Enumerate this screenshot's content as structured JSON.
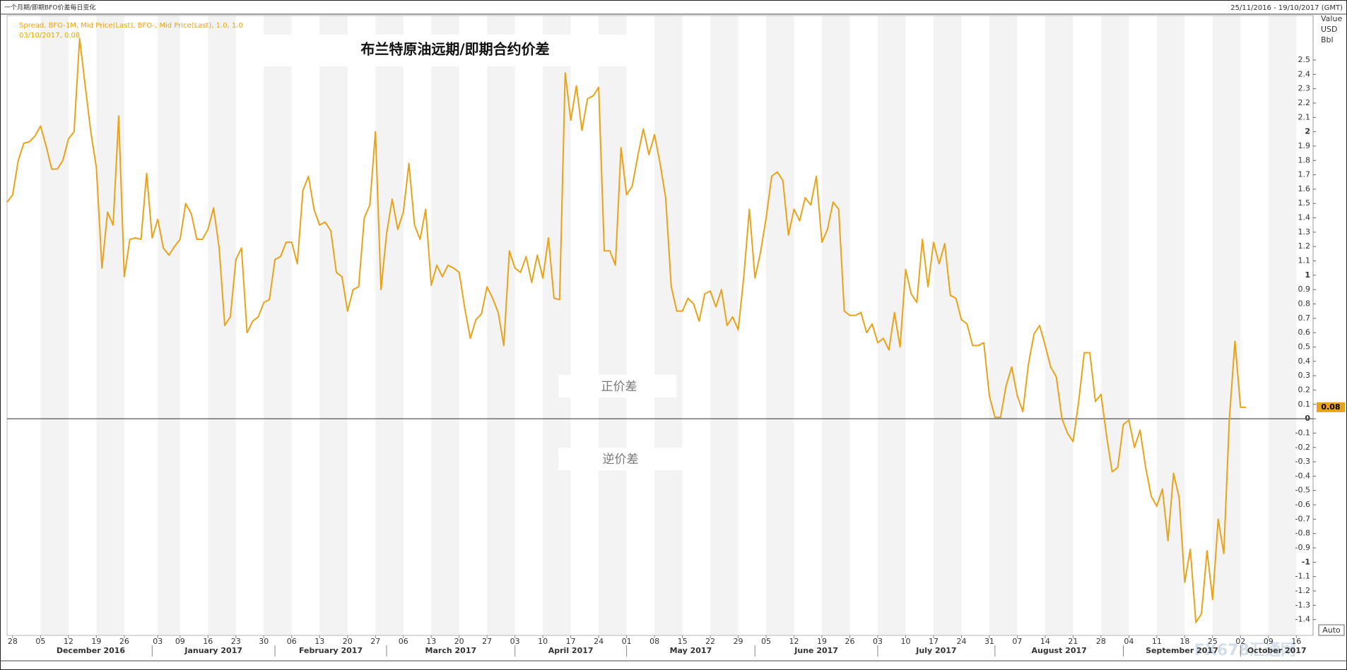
{
  "chart_data": {
    "type": "line",
    "title": "布兰特原油远期/即期合约价差",
    "caption": "一个月期/即期BFO价差每日变化",
    "date_range": "25/11/2016 - 19/10/2017 (GMT)",
    "cursor_label": "03/10/2017, 0.08",
    "annotations": [
      "正价差",
      "逆价差"
    ],
    "y_axis_label": [
      "Value",
      "USD",
      "Bbl"
    ],
    "button": "Auto",
    "watermark": "FX678汇通网",
    "xlim": [
      "2016-11-25",
      "2017-10-19"
    ],
    "ylim": [
      -1.51,
      2.81
    ],
    "reference_line": 0,
    "xticks": [
      {
        "value": "2016-11-28",
        "label": "28"
      },
      {
        "value": "2016-12-05",
        "label": "05"
      },
      {
        "value": "2016-12-12",
        "label": "12"
      },
      {
        "value": "2016-12-19",
        "label": "19"
      },
      {
        "value": "2016-12-26",
        "label": "26"
      },
      {
        "value": "2017-01-03",
        "label": "03"
      },
      {
        "value": "2017-01-09",
        "label": "09"
      },
      {
        "value": "2017-01-16",
        "label": "16"
      },
      {
        "value": "2017-01-23",
        "label": "23"
      },
      {
        "value": "2017-01-30",
        "label": "30"
      },
      {
        "value": "2017-02-06",
        "label": "06"
      },
      {
        "value": "2017-02-13",
        "label": "13"
      },
      {
        "value": "2017-02-20",
        "label": "20"
      },
      {
        "value": "2017-02-27",
        "label": "27"
      },
      {
        "value": "2017-03-06",
        "label": "06"
      },
      {
        "value": "2017-03-13",
        "label": "13"
      },
      {
        "value": "2017-03-20",
        "label": "20"
      },
      {
        "value": "2017-03-27",
        "label": "27"
      },
      {
        "value": "2017-04-03",
        "label": "03"
      },
      {
        "value": "2017-04-10",
        "label": "10"
      },
      {
        "value": "2017-04-17",
        "label": "17"
      },
      {
        "value": "2017-04-24",
        "label": "24"
      },
      {
        "value": "2017-05-01",
        "label": "01"
      },
      {
        "value": "2017-05-08",
        "label": "08"
      },
      {
        "value": "2017-05-15",
        "label": "15"
      },
      {
        "value": "2017-05-22",
        "label": "22"
      },
      {
        "value": "2017-05-29",
        "label": "29"
      },
      {
        "value": "2017-06-05",
        "label": "05"
      },
      {
        "value": "2017-06-12",
        "label": "12"
      },
      {
        "value": "2017-06-19",
        "label": "19"
      },
      {
        "value": "2017-06-26",
        "label": "26"
      },
      {
        "value": "2017-07-03",
        "label": "03"
      },
      {
        "value": "2017-07-10",
        "label": "10"
      },
      {
        "value": "2017-07-17",
        "label": "17"
      },
      {
        "value": "2017-07-24",
        "label": "24"
      },
      {
        "value": "2017-07-31",
        "label": "31"
      },
      {
        "value": "2017-08-07",
        "label": "07"
      },
      {
        "value": "2017-08-14",
        "label": "14"
      },
      {
        "value": "2017-08-21",
        "label": "21"
      },
      {
        "value": "2017-08-28",
        "label": "28"
      },
      {
        "value": "2017-09-04",
        "label": "04"
      },
      {
        "value": "2017-09-11",
        "label": "11"
      },
      {
        "value": "2017-09-18",
        "label": "18"
      },
      {
        "value": "2017-09-25",
        "label": "25"
      },
      {
        "value": "2017-10-02",
        "label": "02"
      },
      {
        "value": "2017-10-09",
        "label": "09"
      },
      {
        "value": "2017-10-16",
        "label": "16"
      }
    ],
    "months": [
      {
        "value": "2016-12",
        "label": "December 2016"
      },
      {
        "value": "2017-01",
        "label": "January 2017"
      },
      {
        "value": "2017-02",
        "label": "February 2017"
      },
      {
        "value": "2017-03",
        "label": "March 2017"
      },
      {
        "value": "2017-04",
        "label": "April 2017"
      },
      {
        "value": "2017-05",
        "label": "May 2017"
      },
      {
        "value": "2017-06",
        "label": "June 2017"
      },
      {
        "value": "2017-07",
        "label": "July 2017"
      },
      {
        "value": "2017-08",
        "label": "August 2017"
      },
      {
        "value": "2017-09",
        "label": "September 2017"
      },
      {
        "value": "2017-10",
        "label": "October 2017"
      }
    ],
    "yticks": [
      2.5,
      2.4,
      2.3,
      2.2,
      2.1,
      2,
      1.9,
      1.8,
      1.7,
      1.6,
      1.5,
      1.4,
      1.3,
      1.2,
      1.1,
      1,
      0.9,
      0.8,
      0.7,
      0.6,
      0.5,
      0.4,
      0.3,
      0.2,
      0.1,
      0,
      -0.1,
      -0.2,
      -0.3,
      -0.4,
      -0.5,
      -0.6,
      -0.7,
      -0.8,
      -0.9,
      -1,
      -1.1,
      -1.2,
      -1.3,
      -1.4
    ],
    "x": [
      "2016-11-25",
      "2016-11-28",
      "2016-11-29",
      "2016-11-30",
      "2016-12-01",
      "2016-12-02",
      "2016-12-05",
      "2016-12-06",
      "2016-12-07",
      "2016-12-08",
      "2016-12-09",
      "2016-12-12",
      "2016-12-13",
      "2016-12-14",
      "2016-12-15",
      "2016-12-16",
      "2016-12-19",
      "2016-12-20",
      "2016-12-21",
      "2016-12-22",
      "2016-12-23",
      "2016-12-26",
      "2016-12-27",
      "2016-12-28",
      "2016-12-29",
      "2016-12-30",
      "2017-01-02",
      "2017-01-03",
      "2017-01-04",
      "2017-01-05",
      "2017-01-06",
      "2017-01-09",
      "2017-01-10",
      "2017-01-11",
      "2017-01-12",
      "2017-01-13",
      "2017-01-16",
      "2017-01-17",
      "2017-01-18",
      "2017-01-19",
      "2017-01-20",
      "2017-01-23",
      "2017-01-24",
      "2017-01-25",
      "2017-01-26",
      "2017-01-27",
      "2017-01-30",
      "2017-01-31",
      "2017-02-01",
      "2017-02-02",
      "2017-02-03",
      "2017-02-06",
      "2017-02-07",
      "2017-02-08",
      "2017-02-09",
      "2017-02-10",
      "2017-02-13",
      "2017-02-14",
      "2017-02-15",
      "2017-02-16",
      "2017-02-17",
      "2017-02-20",
      "2017-02-21",
      "2017-02-22",
      "2017-02-23",
      "2017-02-24",
      "2017-02-27",
      "2017-02-28",
      "2017-03-01",
      "2017-03-02",
      "2017-03-03",
      "2017-03-06",
      "2017-03-07",
      "2017-03-08",
      "2017-03-09",
      "2017-03-10",
      "2017-03-13",
      "2017-03-14",
      "2017-03-15",
      "2017-03-16",
      "2017-03-17",
      "2017-03-20",
      "2017-03-21",
      "2017-03-22",
      "2017-03-23",
      "2017-03-24",
      "2017-03-27",
      "2017-03-28",
      "2017-03-29",
      "2017-03-30",
      "2017-03-31",
      "2017-04-03",
      "2017-04-04",
      "2017-04-05",
      "2017-04-06",
      "2017-04-07",
      "2017-04-10",
      "2017-04-11",
      "2017-04-12",
      "2017-04-13",
      "2017-04-14",
      "2017-04-17",
      "2017-04-18",
      "2017-04-19",
      "2017-04-20",
      "2017-04-21",
      "2017-04-24",
      "2017-04-25",
      "2017-04-26",
      "2017-04-27",
      "2017-04-28",
      "2017-05-01",
      "2017-05-02",
      "2017-05-03",
      "2017-05-04",
      "2017-05-05",
      "2017-05-08",
      "2017-05-09",
      "2017-05-10",
      "2017-05-11",
      "2017-05-12",
      "2017-05-15",
      "2017-05-16",
      "2017-05-17",
      "2017-05-18",
      "2017-05-19",
      "2017-05-22",
      "2017-05-23",
      "2017-05-24",
      "2017-05-25",
      "2017-05-26",
      "2017-05-29",
      "2017-05-30",
      "2017-05-31",
      "2017-06-01",
      "2017-06-02",
      "2017-06-05",
      "2017-06-06",
      "2017-06-07",
      "2017-06-08",
      "2017-06-09",
      "2017-06-12",
      "2017-06-13",
      "2017-06-14",
      "2017-06-15",
      "2017-06-16",
      "2017-06-19",
      "2017-06-20",
      "2017-06-21",
      "2017-06-22",
      "2017-06-23",
      "2017-06-26",
      "2017-06-27",
      "2017-06-28",
      "2017-06-29",
      "2017-06-30",
      "2017-07-03",
      "2017-07-04",
      "2017-07-05",
      "2017-07-06",
      "2017-07-07",
      "2017-07-10",
      "2017-07-11",
      "2017-07-12",
      "2017-07-13",
      "2017-07-14",
      "2017-07-17",
      "2017-07-18",
      "2017-07-19",
      "2017-07-20",
      "2017-07-21",
      "2017-07-24",
      "2017-07-25",
      "2017-07-26",
      "2017-07-27",
      "2017-07-28",
      "2017-07-31",
      "2017-08-01",
      "2017-08-02",
      "2017-08-03",
      "2017-08-04",
      "2017-08-07",
      "2017-08-08",
      "2017-08-09",
      "2017-08-10",
      "2017-08-11",
      "2017-08-14",
      "2017-08-15",
      "2017-08-16",
      "2017-08-17",
      "2017-08-18",
      "2017-08-21",
      "2017-08-22",
      "2017-08-23",
      "2017-08-24",
      "2017-08-25",
      "2017-08-28",
      "2017-08-29",
      "2017-08-30",
      "2017-08-31",
      "2017-09-01",
      "2017-09-04",
      "2017-09-05",
      "2017-09-06",
      "2017-09-07",
      "2017-09-08",
      "2017-09-11",
      "2017-09-12",
      "2017-09-13",
      "2017-09-14",
      "2017-09-15",
      "2017-09-18",
      "2017-09-19",
      "2017-09-20",
      "2017-09-21",
      "2017-09-22",
      "2017-09-25",
      "2017-09-26",
      "2017-09-27",
      "2017-09-28",
      "2017-09-29",
      "2017-10-02",
      "2017-10-03"
    ],
    "series": [
      {
        "name": "Spread, BFO-1M, Mid Price(Last), BFO-, Mid Price(Last),  1.0, 1.0",
        "color": "#e8a31a",
        "values": [
          1.51,
          1.56,
          1.8,
          1.92,
          1.93,
          1.97,
          2.04,
          1.9,
          1.74,
          1.74,
          1.8,
          1.95,
          2.0,
          2.65,
          2.32,
          2.0,
          1.75,
          1.05,
          1.44,
          1.35,
          2.11,
          0.99,
          1.25,
          1.26,
          1.25,
          1.71,
          1.26,
          1.39,
          1.19,
          1.14,
          1.2,
          1.25,
          1.5,
          1.43,
          1.25,
          1.25,
          1.32,
          1.47,
          1.19,
          0.65,
          0.71,
          1.11,
          1.19,
          0.6,
          0.68,
          0.71,
          0.81,
          0.83,
          1.11,
          1.13,
          1.23,
          1.23,
          1.08,
          1.59,
          1.69,
          1.46,
          1.35,
          1.37,
          1.31,
          1.02,
          0.99,
          0.75,
          0.9,
          0.92,
          1.4,
          1.49,
          2.0,
          0.9,
          1.29,
          1.53,
          1.32,
          1.44,
          1.78,
          1.35,
          1.25,
          1.46,
          0.93,
          1.07,
          0.99,
          1.07,
          1.05,
          1.02,
          0.77,
          0.56,
          0.69,
          0.73,
          0.92,
          0.84,
          0.74,
          0.51,
          1.17,
          1.05,
          1.02,
          1.13,
          0.95,
          1.14,
          0.98,
          1.26,
          0.84,
          0.83,
          2.41,
          2.08,
          2.32,
          2.01,
          2.23,
          2.25,
          2.31,
          1.17,
          1.17,
          1.07,
          1.89,
          1.56,
          1.62,
          1.83,
          2.02,
          1.84,
          1.98,
          1.78,
          1.54,
          0.92,
          0.75,
          0.75,
          0.84,
          0.8,
          0.68,
          0.87,
          0.89,
          0.78,
          0.9,
          0.65,
          0.71,
          0.62,
          0.99,
          1.46,
          0.98,
          1.16,
          1.4,
          1.69,
          1.72,
          1.66,
          1.28,
          1.46,
          1.38,
          1.54,
          1.49,
          1.69,
          1.23,
          1.32,
          1.51,
          1.46,
          0.75,
          0.72,
          0.72,
          0.74,
          0.6,
          0.66,
          0.53,
          0.56,
          0.48,
          0.74,
          0.5,
          1.04,
          0.87,
          0.81,
          1.25,
          0.92,
          1.23,
          1.08,
          1.22,
          0.86,
          0.84,
          0.69,
          0.66,
          0.51,
          0.51,
          0.53,
          0.16,
          0.01,
          0.01,
          0.23,
          0.36,
          0.16,
          0.05,
          0.38,
          0.59,
          0.65,
          0.51,
          0.36,
          0.29,
          0,
          -0.1,
          -0.16,
          0.12,
          0.46,
          0.46,
          0.12,
          0.17,
          -0.12,
          -0.37,
          -0.34,
          -0.04,
          -0.01,
          -0.2,
          -0.08,
          -0.34,
          -0.54,
          -0.61,
          -0.49,
          -0.85,
          -0.38,
          -0.55,
          -1.14,
          -0.91,
          -1.42,
          -1.36,
          -0.92,
          -1.26,
          -0.7,
          -0.94,
          0,
          0.54,
          0.08,
          0.08
        ]
      }
    ]
  }
}
